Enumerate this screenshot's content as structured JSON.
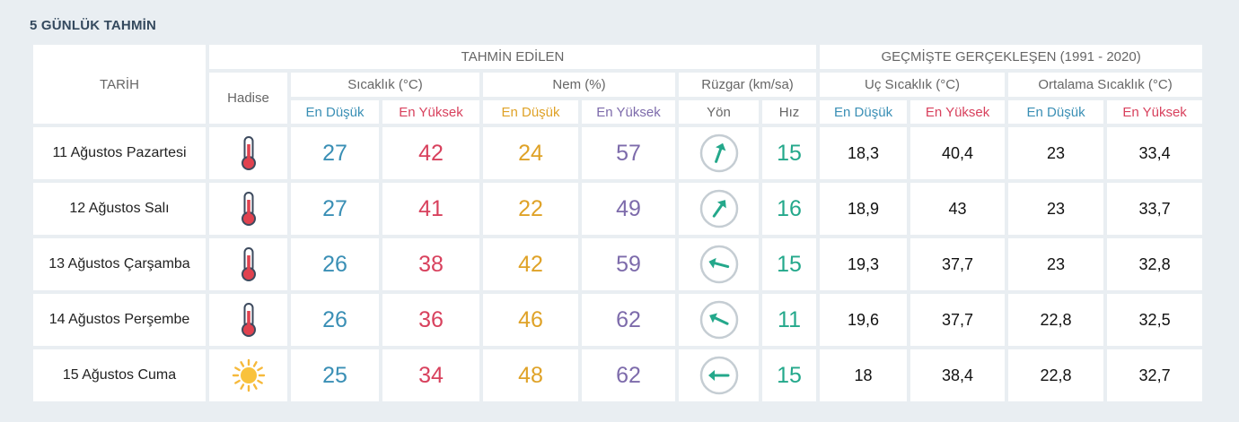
{
  "title": "5 GÜNLÜK TAHMİN",
  "header": {
    "tarih": "TARİH",
    "hadise": "Hadise",
    "forecast_group": "TAHMİN EDİLEN",
    "history_group": "GEÇMİŞTE GERÇEKLEŞEN (1991 - 2020)",
    "sicaklik": "Sıcaklık (°C)",
    "nem": "Nem (%)",
    "ruzgar": "Rüzgar (km/sa)",
    "uc_sicaklik": "Uç Sıcaklık (°C)",
    "ortalama_sicaklik": "Ortalama Sıcaklık (°C)",
    "en_dusuk": "En Düşük",
    "en_yuksek": "En Yüksek",
    "yon": "Yön",
    "hiz": "Hız"
  },
  "colors": {
    "low": "#3a8fb5",
    "high": "#d8415d",
    "humidity_low": "#dfa227",
    "humidity_high": "#7d6bab",
    "wind_speed": "#24a88b"
  },
  "rows": [
    {
      "date": "11 Ağustos Pazartesi",
      "icon": "thermometer-icon",
      "temp_low": "27",
      "temp_high": "42",
      "hum_low": "24",
      "hum_high": "57",
      "wind_dir_deg": 200,
      "wind_speed": "15",
      "ext_low": "18,3",
      "ext_high": "40,4",
      "avg_low": "23",
      "avg_high": "33,4"
    },
    {
      "date": "12 Ağustos Salı",
      "icon": "thermometer-icon",
      "temp_low": "27",
      "temp_high": "41",
      "hum_low": "22",
      "hum_high": "49",
      "wind_dir_deg": 215,
      "wind_speed": "16",
      "ext_low": "18,9",
      "ext_high": "43",
      "avg_low": "23",
      "avg_high": "33,7"
    },
    {
      "date": "13 Ağustos Çarşamba",
      "icon": "thermometer-icon",
      "temp_low": "26",
      "temp_high": "38",
      "hum_low": "42",
      "hum_high": "59",
      "wind_dir_deg": 105,
      "wind_speed": "15",
      "ext_low": "19,3",
      "ext_high": "37,7",
      "avg_low": "23",
      "avg_high": "32,8"
    },
    {
      "date": "14 Ağustos Perşembe",
      "icon": "thermometer-icon",
      "temp_low": "26",
      "temp_high": "36",
      "hum_low": "46",
      "hum_high": "62",
      "wind_dir_deg": 115,
      "wind_speed": "11",
      "ext_low": "19,6",
      "ext_high": "37,7",
      "avg_low": "22,8",
      "avg_high": "32,5"
    },
    {
      "date": "15 Ağustos Cuma",
      "icon": "sun-icon",
      "temp_low": "25",
      "temp_high": "34",
      "hum_low": "48",
      "hum_high": "62",
      "wind_dir_deg": 90,
      "wind_speed": "15",
      "ext_low": "18",
      "ext_high": "38,4",
      "avg_low": "22,8",
      "avg_high": "32,7"
    }
  ]
}
